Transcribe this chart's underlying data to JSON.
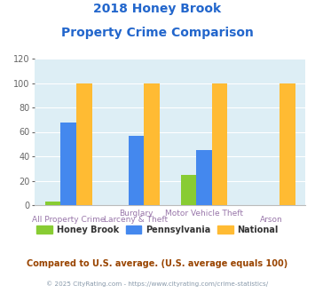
{
  "title_line1": "2018 Honey Brook",
  "title_line2": "Property Crime Comparison",
  "categories_top": [
    "",
    "Burglary",
    "Motor Vehicle Theft",
    ""
  ],
  "categories_bottom": [
    "All Property Crime",
    "Larceny & Theft",
    "",
    "Arson"
  ],
  "honey_brook": [
    3,
    0,
    25,
    0
  ],
  "pennsylvania": [
    68,
    57,
    45,
    0
  ],
  "national": [
    100,
    100,
    100,
    100
  ],
  "colors": {
    "honey_brook": "#88cc33",
    "pennsylvania": "#4488ee",
    "national": "#ffbb33"
  },
  "ylim": [
    0,
    120
  ],
  "yticks": [
    0,
    20,
    40,
    60,
    80,
    100,
    120
  ],
  "legend_labels": [
    "Honey Brook",
    "Pennsylvania",
    "National"
  ],
  "subtitle": "Compared to U.S. average. (U.S. average equals 100)",
  "footer": "© 2025 CityRating.com - https://www.cityrating.com/crime-statistics/",
  "title_color": "#2266cc",
  "subtitle_color": "#994400",
  "footer_color": "#8899aa",
  "plot_bg_color": "#ddeef5"
}
